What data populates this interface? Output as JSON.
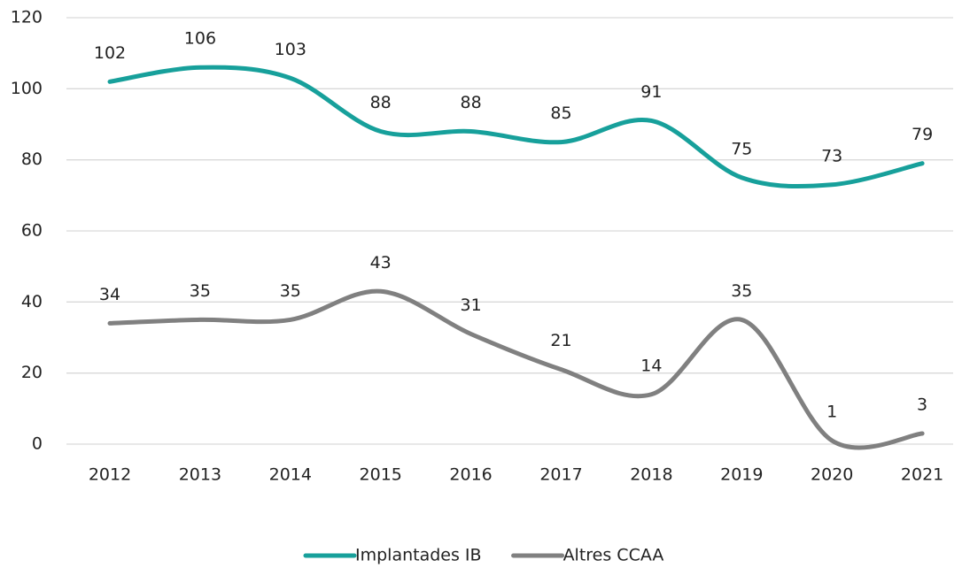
{
  "chart_data": {
    "type": "line",
    "categories": [
      "2012",
      "2013",
      "2014",
      "2015",
      "2016",
      "2017",
      "2018",
      "2019",
      "2020",
      "2021"
    ],
    "series": [
      {
        "name": "Implantades IB",
        "color": "#17a09b",
        "values": [
          102,
          106,
          103,
          88,
          88,
          85,
          91,
          75,
          73,
          79
        ]
      },
      {
        "name": "Altres CCAA",
        "color": "#808080",
        "values": [
          34,
          35,
          35,
          43,
          31,
          21,
          14,
          35,
          1,
          3
        ]
      }
    ],
    "ylim": [
      0,
      120
    ],
    "yticks": [
      0,
      20,
      40,
      60,
      80,
      100,
      120
    ],
    "grid": true,
    "legend": "bottom",
    "smooth": true
  }
}
